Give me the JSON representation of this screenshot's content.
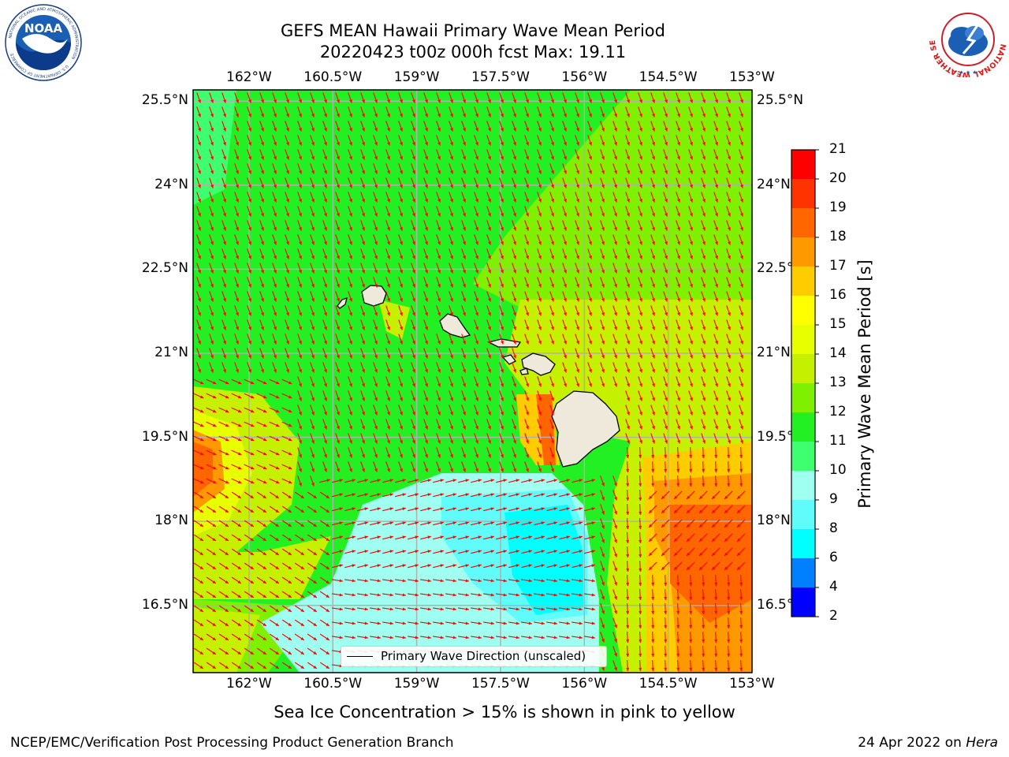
{
  "header": {
    "title_line1": "GEFS MEAN Hawaii Primary Wave Mean Period",
    "title_line2": "20220423 t00z 000h fcst   Max: 19.11"
  },
  "logos": {
    "left": {
      "name": "NOAA",
      "ring_text": "NATIONAL OCEANIC AND ATMOSPHERIC ADMINISTRATION",
      "bottom_text": "U.S. DEPARTMENT OF COMMERCE",
      "color": "#1a5fb4"
    },
    "right": {
      "name": "National Weather Service",
      "ring_text": "NATIONAL WEATHER SERVICE",
      "color": "#d81818"
    }
  },
  "map": {
    "x_ticks": [
      "162°W",
      "160.5°W",
      "159°W",
      "157.5°W",
      "156°W",
      "154.5°W",
      "153°W"
    ],
    "y_ticks": [
      "25.5°N",
      "24°N",
      "22.5°N",
      "21°N",
      "19.5°N",
      "18°N",
      "16.5°N"
    ],
    "lon_range": [
      -163,
      -153
    ],
    "lat_range": [
      15.3,
      25.7
    ],
    "lon_ticks": [
      -162,
      -160.5,
      -159,
      -157.5,
      -156,
      -154.5,
      -153
    ],
    "lat_ticks": [
      25.5,
      24,
      22.5,
      21,
      19.5,
      18,
      16.5
    ],
    "grid": true,
    "arrow_color": "#ff0000",
    "land_color": "#efe9dc",
    "legend_label": "Primary Wave Direction (unscaled)"
  },
  "colorbar": {
    "label": "Primary Wave Mean Period [s]",
    "ticks": [
      "21",
      "20",
      "19",
      "18",
      "17",
      "16",
      "15",
      "14",
      "13",
      "12",
      "11",
      "10",
      "9",
      "8",
      "6",
      "4",
      "2"
    ],
    "bands": [
      {
        "from": 2,
        "to": 4,
        "color": "#0000ff"
      },
      {
        "from": 4,
        "to": 6,
        "color": "#0080ff"
      },
      {
        "from": 6,
        "to": 8,
        "color": "#00ffff"
      },
      {
        "from": 8,
        "to": 9,
        "color": "#60fcfc"
      },
      {
        "from": 9,
        "to": 10,
        "color": "#9ffff0"
      },
      {
        "from": 10,
        "to": 11,
        "color": "#3dff70"
      },
      {
        "from": 11,
        "to": 12,
        "color": "#22f022"
      },
      {
        "from": 12,
        "to": 13,
        "color": "#7ff000"
      },
      {
        "from": 13,
        "to": 14,
        "color": "#c5f000"
      },
      {
        "from": 14,
        "to": 15,
        "color": "#e8ff00"
      },
      {
        "from": 15,
        "to": 16,
        "color": "#ffff00"
      },
      {
        "from": 16,
        "to": 17,
        "color": "#ffcc00"
      },
      {
        "from": 17,
        "to": 18,
        "color": "#ff9900"
      },
      {
        "from": 18,
        "to": 19,
        "color": "#ff6600"
      },
      {
        "from": 19,
        "to": 20,
        "color": "#ff3300"
      },
      {
        "from": 20,
        "to": 21,
        "color": "#ff0000"
      }
    ]
  },
  "footer": {
    "note": "Sea Ice Concentration > 15% is shown in pink to yellow",
    "left": "NCEP/EMC/Verification Post Processing Product Generation Branch",
    "right_prefix": "24 Apr 2022 on ",
    "right_host": "Hera"
  }
}
